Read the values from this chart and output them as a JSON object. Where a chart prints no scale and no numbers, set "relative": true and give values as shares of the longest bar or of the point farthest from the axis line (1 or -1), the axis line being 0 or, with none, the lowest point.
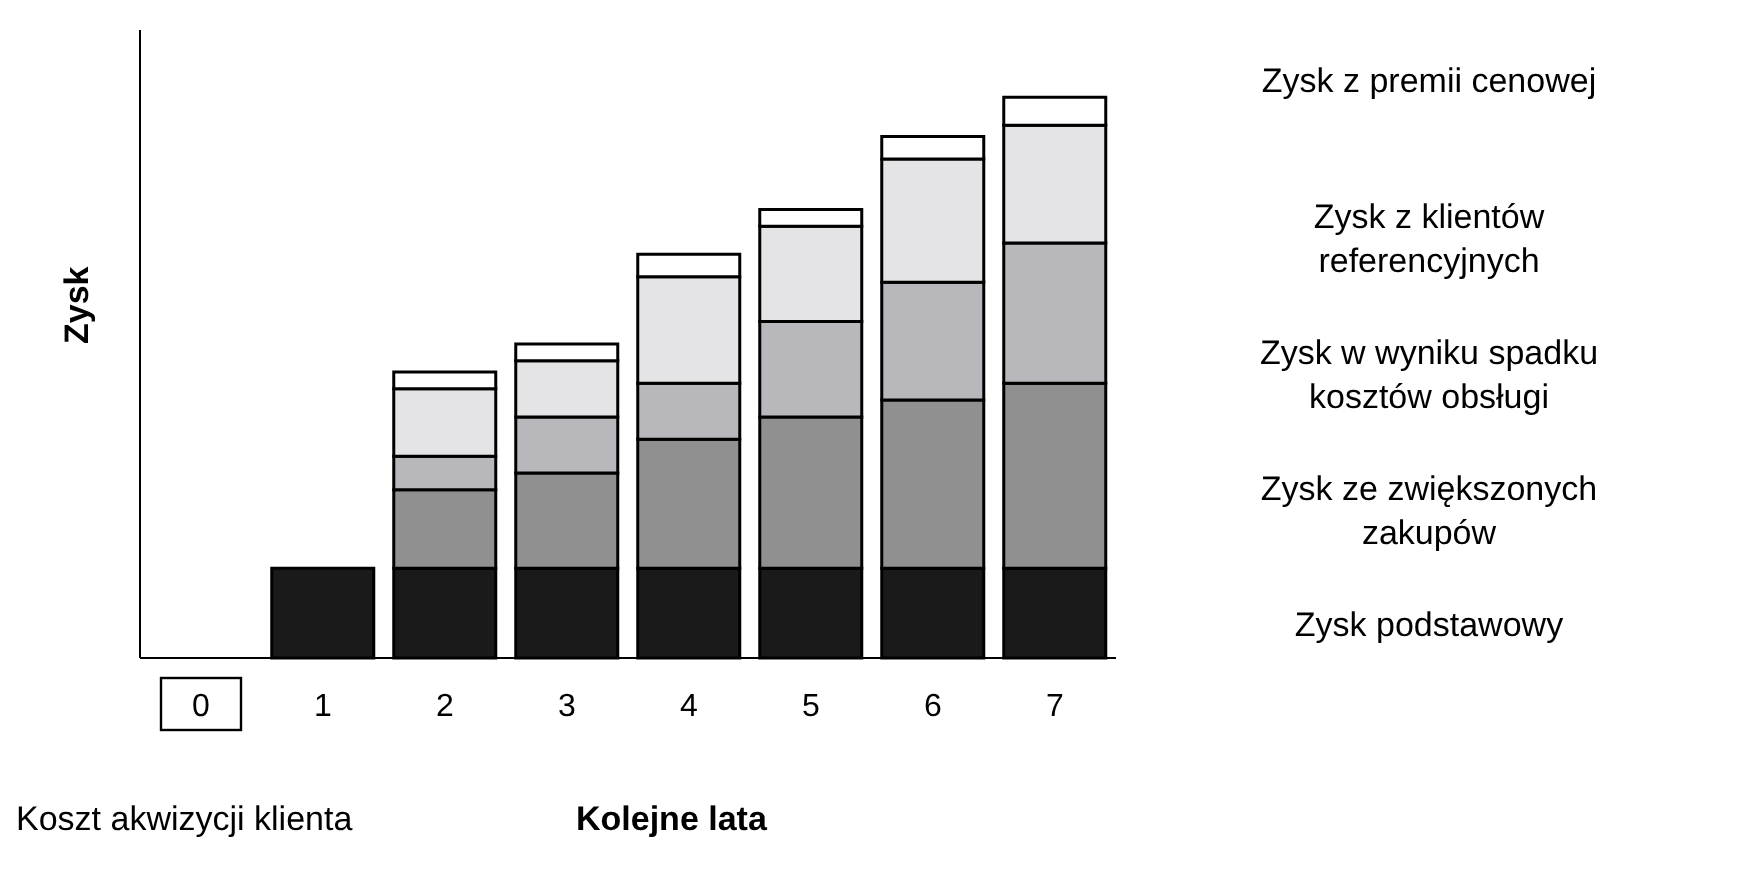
{
  "chart_data": {
    "type": "bar",
    "stacked": true,
    "relative": true,
    "xlabel": "Kolejne lata",
    "ylabel": "Zysk",
    "legend": "right",
    "categories": [
      "0",
      "1",
      "2",
      "3",
      "4",
      "5",
      "6",
      "7"
    ],
    "annotations": [
      "Koszt akwizycji klienta"
    ],
    "series": [
      {
        "name": "Zysk podstawowy",
        "color": "#1a1a1a",
        "values": [
          null,
          0.16,
          0.16,
          0.16,
          0.16,
          0.16,
          0.16,
          0.16
        ]
      },
      {
        "name": "Zysk ze zwiększonych zakupów",
        "color": "#909090",
        "values": [
          null,
          null,
          0.14,
          0.17,
          0.23,
          0.27,
          0.3,
          0.33
        ]
      },
      {
        "name": "Zysk w wyniku spadku kosztów obsługi",
        "color": "#b8b8bc",
        "values": [
          null,
          null,
          0.06,
          0.1,
          0.1,
          0.17,
          0.21,
          0.25
        ]
      },
      {
        "name": "Zysk z klientów referencyjnych",
        "color": "#e4e4e6",
        "values": [
          null,
          null,
          0.12,
          0.1,
          0.19,
          0.17,
          0.22,
          0.21
        ]
      },
      {
        "name": "Zysk z premii cenowej",
        "color": "#ffffff",
        "values": [
          null,
          null,
          0.03,
          0.03,
          0.04,
          0.03,
          0.04,
          0.05
        ]
      }
    ]
  }
}
